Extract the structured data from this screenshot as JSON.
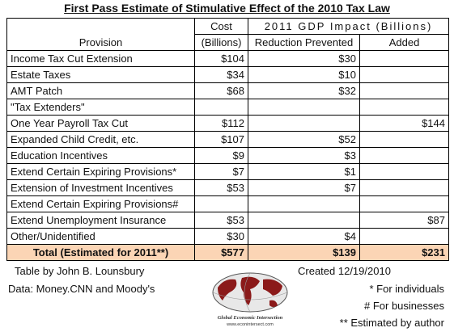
{
  "title": "First Pass Estimate of Stimulative Effect of the 2010 Tax Law",
  "header": {
    "provision": "Provision",
    "cost_line1": "Cost",
    "cost_line2": "(Billions)",
    "gdp_group": "2011 GDP Impact (Billions)",
    "reduction": "Reduction Prevented",
    "added": "Added"
  },
  "rows": [
    {
      "provision": "Income Tax Cut Extension",
      "cost": "$104",
      "reduction": "$30",
      "added": ""
    },
    {
      "provision": "Estate Taxes",
      "cost": "$34",
      "reduction": "$10",
      "added": ""
    },
    {
      "provision": "AMT Patch",
      "cost": "$68",
      "reduction": "$32",
      "added": ""
    },
    {
      "provision": "\"Tax Extenders\"",
      "cost": "",
      "reduction": "",
      "added": ""
    },
    {
      "provision": "One Year Payroll Tax Cut",
      "cost": "$112",
      "reduction": "",
      "added": "$144"
    },
    {
      "provision": "Expanded Child Credit, etc.",
      "cost": "$107",
      "reduction": "$52",
      "added": ""
    },
    {
      "provision": "Education Incentives",
      "cost": "$9",
      "reduction": "$3",
      "added": ""
    },
    {
      "provision": "Extend Certain Expiring Provisions*",
      "cost": "$7",
      "reduction": "$1",
      "added": ""
    },
    {
      "provision": "Extension of Investment Incentives",
      "cost": "$53",
      "reduction": "$7",
      "added": ""
    },
    {
      "provision": "Extend Certain Expiring Provisions#",
      "cost": "",
      "reduction": "",
      "added": ""
    },
    {
      "provision": "Extend Unemployment Insurance",
      "cost": "$53",
      "reduction": "",
      "added": "$87"
    },
    {
      "provision": "Other/Unidentified",
      "cost": "$30",
      "reduction": "$4",
      "added": ""
    }
  ],
  "total": {
    "provision": "Total (Estimated for 2011**)",
    "cost": "$577",
    "reduction": "$139",
    "added": "$231"
  },
  "footer": {
    "table_by": "Table by John B. Lounsbury",
    "created": "Created 12/19/2010",
    "data_source": "Data:  Money.CNN and Moody's",
    "note_individuals": "* For individuals",
    "note_businesses": "# For businesses",
    "note_author": "** Estimated by author"
  },
  "logo": {
    "name_text": "Global Economic Intersection",
    "url_text": "www.econintersect.com"
  },
  "colors": {
    "total_row": "#fbd5b5",
    "logo_land": "#8b1a1a"
  }
}
